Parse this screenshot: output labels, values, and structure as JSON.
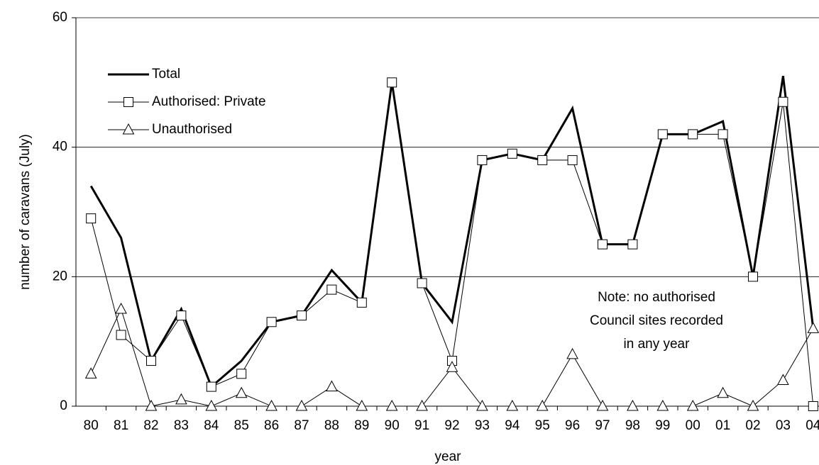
{
  "chart_data": {
    "type": "line",
    "x_label": "year",
    "y_label": "number of caravans (July)",
    "categories": [
      "80",
      "81",
      "82",
      "83",
      "84",
      "85",
      "86",
      "87",
      "88",
      "89",
      "90",
      "91",
      "92",
      "93",
      "94",
      "95",
      "96",
      "97",
      "98",
      "99",
      "00",
      "01",
      "02",
      "03",
      "04"
    ],
    "series": [
      {
        "name": "Total",
        "color": "#000000",
        "line_width": 3,
        "marker": null,
        "values": [
          34,
          26,
          7,
          15,
          3,
          7,
          13,
          14,
          21,
          16,
          50,
          19,
          13,
          38,
          39,
          38,
          46,
          25,
          25,
          42,
          42,
          44,
          20,
          51,
          12
        ]
      },
      {
        "name": "Authorised: Private",
        "color": "#000000",
        "line_width": 1,
        "marker": "square",
        "values": [
          29,
          11,
          7,
          14,
          3,
          5,
          13,
          14,
          18,
          16,
          50,
          19,
          7,
          38,
          39,
          38,
          38,
          25,
          25,
          42,
          42,
          42,
          20,
          47,
          0
        ]
      },
      {
        "name": "Unauthorised",
        "color": "#000000",
        "line_width": 1,
        "marker": "triangle",
        "values": [
          5,
          15,
          0,
          1,
          0,
          2,
          0,
          0,
          3,
          0,
          0,
          0,
          6,
          0,
          0,
          0,
          8,
          0,
          0,
          0,
          0,
          2,
          0,
          4,
          12
        ]
      }
    ],
    "annotation": [
      "Note: no authorised",
      "Council sites recorded",
      "in any year"
    ],
    "ylim": [
      0,
      60
    ],
    "yticks": [
      0,
      20,
      40,
      60
    ],
    "grid": true,
    "legend": "upper left"
  }
}
